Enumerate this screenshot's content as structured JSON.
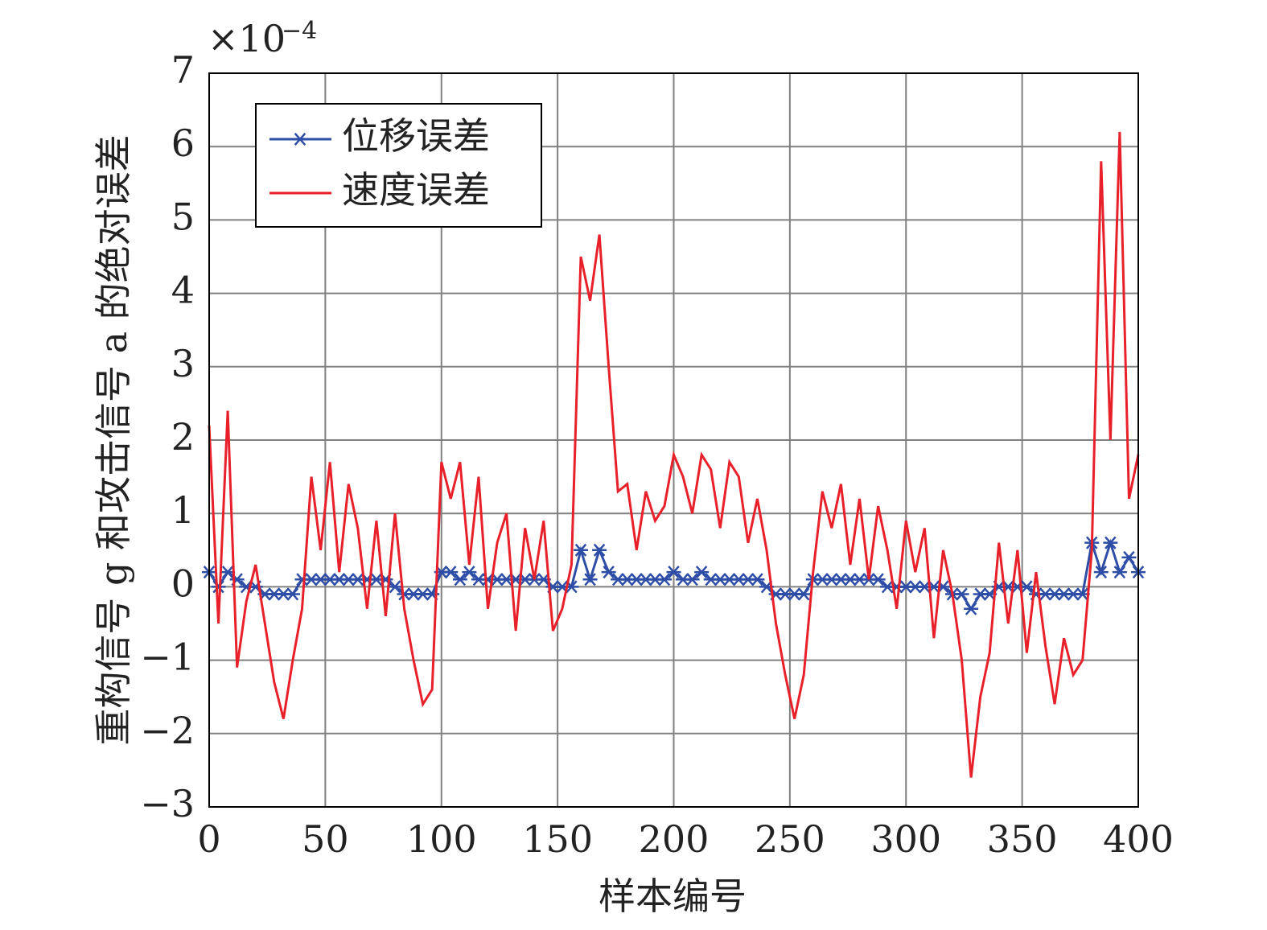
{
  "chart_data": {
    "type": "line",
    "xlabel": "样本编号",
    "ylabel": "重构信号 g 和攻击信号 a 的绝对误差",
    "y_multiplier": {
      "base": "×10",
      "exponent": "−4"
    },
    "x": [
      0,
      4,
      8,
      12,
      16,
      20,
      24,
      28,
      32,
      36,
      40,
      44,
      48,
      52,
      56,
      60,
      64,
      68,
      72,
      76,
      80,
      84,
      88,
      92,
      96,
      100,
      104,
      108,
      112,
      116,
      120,
      124,
      128,
      132,
      136,
      140,
      144,
      148,
      152,
      156,
      160,
      164,
      168,
      172,
      176,
      180,
      184,
      188,
      192,
      196,
      200,
      204,
      208,
      212,
      216,
      220,
      224,
      228,
      232,
      236,
      240,
      244,
      248,
      252,
      256,
      260,
      264,
      268,
      272,
      276,
      280,
      284,
      288,
      292,
      296,
      300,
      304,
      308,
      312,
      316,
      320,
      324,
      328,
      332,
      336,
      340,
      344,
      348,
      352,
      356,
      360,
      364,
      368,
      372,
      376,
      380,
      384,
      388,
      392,
      396,
      400
    ],
    "series": [
      {
        "name": "位移误差",
        "color": "#2e4da6",
        "marker": "asterisk",
        "values": [
          0.2,
          0,
          0.2,
          0.1,
          0,
          0,
          -0.1,
          -0.1,
          -0.1,
          -0.1,
          0.1,
          0.1,
          0.1,
          0.1,
          0.1,
          0.1,
          0.1,
          0.1,
          0.1,
          0.1,
          0,
          -0.1,
          -0.1,
          -0.1,
          -0.1,
          0.2,
          0.2,
          0.1,
          0.2,
          0.1,
          0.1,
          0.1,
          0.1,
          0.1,
          0.1,
          0.1,
          0.1,
          0,
          0,
          0,
          0.5,
          0.1,
          0.5,
          0.2,
          0.1,
          0.1,
          0.1,
          0.1,
          0.1,
          0.1,
          0.2,
          0.1,
          0.1,
          0.2,
          0.1,
          0.1,
          0.1,
          0.1,
          0.1,
          0.1,
          0,
          -0.1,
          -0.1,
          -0.1,
          -0.1,
          0.1,
          0.1,
          0.1,
          0.1,
          0.1,
          0.1,
          0.1,
          0.1,
          0,
          0,
          0,
          0,
          0,
          0,
          0,
          -0.1,
          -0.1,
          -0.3,
          -0.1,
          -0.1,
          0,
          0,
          0,
          0,
          -0.1,
          -0.1,
          -0.1,
          -0.1,
          -0.1,
          -0.1,
          0.6,
          0.2,
          0.6,
          0.2,
          0.4,
          0.2
        ]
      },
      {
        "name": "速度误差",
        "color": "#e8202a",
        "marker": null,
        "values": [
          2.2,
          -0.5,
          2.4,
          -1.1,
          -0.2,
          0.3,
          -0.5,
          -1.3,
          -1.8,
          -1.0,
          -0.3,
          1.5,
          0.5,
          1.7,
          0.2,
          1.4,
          0.8,
          -0.3,
          0.9,
          -0.4,
          1.0,
          -0.3,
          -1.0,
          -1.6,
          -1.4,
          1.7,
          1.2,
          1.7,
          0.3,
          1.5,
          -0.3,
          0.6,
          1.0,
          -0.6,
          0.8,
          0.1,
          0.9,
          -0.6,
          -0.3,
          0.3,
          4.5,
          3.9,
          4.8,
          3.0,
          1.3,
          1.4,
          0.5,
          1.3,
          0.9,
          1.1,
          1.8,
          1.5,
          1.0,
          1.8,
          1.6,
          0.8,
          1.7,
          1.5,
          0.6,
          1.2,
          0.5,
          -0.5,
          -1.2,
          -1.8,
          -1.2,
          0.2,
          1.3,
          0.8,
          1.4,
          0.3,
          1.2,
          0.1,
          1.1,
          0.5,
          -0.3,
          0.9,
          0.2,
          0.8,
          -0.7,
          0.5,
          -0.1,
          -1.0,
          -2.6,
          -1.5,
          -0.9,
          0.6,
          -0.5,
          0.5,
          -0.9,
          0.2,
          -0.8,
          -1.6,
          -0.7,
          -1.2,
          -1.0,
          0.5,
          5.8,
          2.0,
          6.2,
          1.2,
          1.8
        ]
      }
    ],
    "xlim": [
      0,
      400
    ],
    "xticks": [
      0,
      50,
      100,
      150,
      200,
      250,
      300,
      350,
      400
    ],
    "ylim": [
      -3,
      7
    ],
    "yticks": [
      {
        "value": -3,
        "label": "−3"
      },
      {
        "value": -2,
        "label": "−2"
      },
      {
        "value": -1,
        "label": "−1"
      },
      0,
      1,
      2,
      3,
      4,
      5,
      6,
      7
    ],
    "grid": true,
    "legend": "upper left"
  }
}
